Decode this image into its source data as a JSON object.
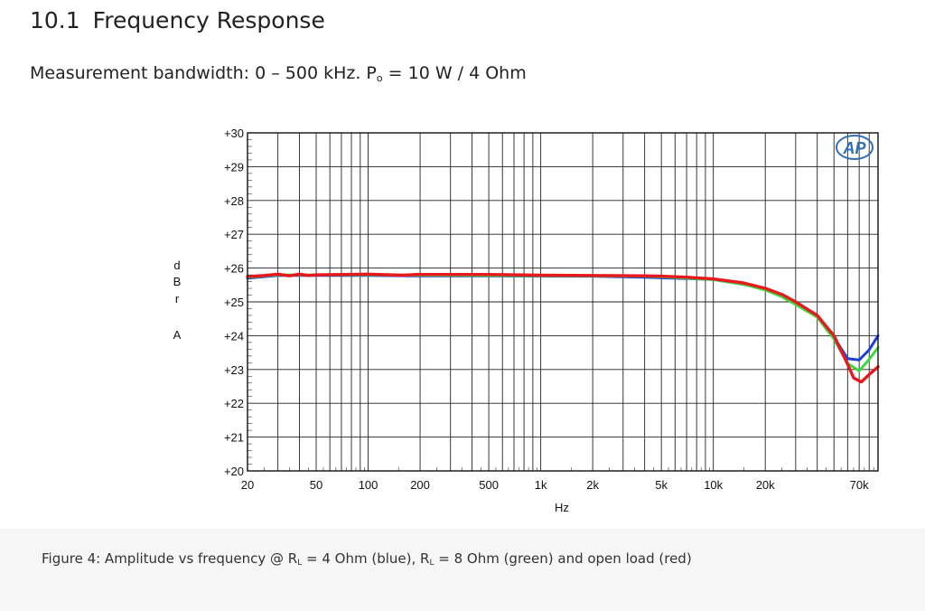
{
  "section": {
    "number": "10.1",
    "title": "Frequency Response"
  },
  "subtitle": {
    "before": "Measurement bandwidth: 0 – 500 kHz. P",
    "sub": "o",
    "after": " = 10 W / 4 Ohm"
  },
  "caption": {
    "p1": "Figure 4: Amplitude vs frequency @ R",
    "s1": "L",
    "p2": " = 4 Ohm (blue), R",
    "s2": "L",
    "p3": " = 8 Ohm (green) and open load (red)"
  },
  "logo_text": "AP",
  "chart_data": {
    "type": "line",
    "xscale": "log",
    "xlim": [
      20,
      90000
    ],
    "ylim": [
      20,
      30
    ],
    "xlabel": "Hz",
    "ylabel": [
      "d",
      "B",
      "r",
      "",
      "A"
    ],
    "x_ticks": [
      {
        "v": 20,
        "label": "20"
      },
      {
        "v": 50,
        "label": "50"
      },
      {
        "v": 100,
        "label": "100"
      },
      {
        "v": 200,
        "label": "200"
      },
      {
        "v": 500,
        "label": "500"
      },
      {
        "v": 1000,
        "label": "1k"
      },
      {
        "v": 2000,
        "label": "2k"
      },
      {
        "v": 5000,
        "label": "5k"
      },
      {
        "v": 10000,
        "label": "10k"
      },
      {
        "v": 20000,
        "label": "20k"
      },
      {
        "v": 70000,
        "label": "70k"
      }
    ],
    "y_ticks": [
      {
        "v": 30,
        "label": "+30"
      },
      {
        "v": 29,
        "label": "+29"
      },
      {
        "v": 28,
        "label": "+28"
      },
      {
        "v": 27,
        "label": "+27"
      },
      {
        "v": 26,
        "label": "+26"
      },
      {
        "v": 25,
        "label": "+25"
      },
      {
        "v": 24,
        "label": "+24"
      },
      {
        "v": 23,
        "label": "+23"
      },
      {
        "v": 22,
        "label": "+22"
      },
      {
        "v": 21,
        "label": "+21"
      },
      {
        "v": 20,
        "label": "+20"
      }
    ],
    "grid": true,
    "series": [
      {
        "color": "#1f3fd6",
        "x": [
          20,
          30,
          50,
          100,
          200,
          500,
          1000,
          2000,
          4000,
          5000,
          7000,
          10000,
          15000,
          20000,
          25000,
          30000,
          40000,
          50000,
          60000,
          70000,
          80000,
          90000
        ],
        "y": [
          25.7,
          25.78,
          25.78,
          25.78,
          25.77,
          25.77,
          25.76,
          25.76,
          25.73,
          25.71,
          25.69,
          25.66,
          25.52,
          25.38,
          25.18,
          24.95,
          24.58,
          23.95,
          23.32,
          23.28,
          23.58,
          24.0
        ]
      },
      {
        "color": "#3ed83e",
        "x": [
          20,
          30,
          50,
          100,
          200,
          500,
          1000,
          2000,
          4000,
          5000,
          7000,
          10000,
          15000,
          20000,
          25000,
          30000,
          40000,
          50000,
          60000,
          70000,
          80000,
          90000
        ],
        "y": [
          25.73,
          25.8,
          25.8,
          25.8,
          25.79,
          25.78,
          25.77,
          25.77,
          25.76,
          25.74,
          25.7,
          25.66,
          25.52,
          25.35,
          25.15,
          24.92,
          24.55,
          23.9,
          23.18,
          22.96,
          23.3,
          23.65
        ]
      },
      {
        "color": "#e8191e",
        "x": [
          20,
          25,
          30,
          35,
          40,
          45,
          50,
          100,
          160,
          190,
          200,
          500,
          1000,
          2000,
          4000,
          5000,
          7000,
          10000,
          15000,
          20000,
          25000,
          30000,
          40000,
          50000,
          60000,
          65000,
          72000,
          80000,
          90000
        ],
        "y": [
          25.75,
          25.78,
          25.82,
          25.77,
          25.82,
          25.78,
          25.8,
          25.82,
          25.79,
          25.81,
          25.81,
          25.81,
          25.79,
          25.78,
          25.77,
          25.76,
          25.73,
          25.68,
          25.56,
          25.4,
          25.22,
          25.0,
          24.6,
          24.0,
          23.15,
          22.75,
          22.63,
          22.85,
          23.08
        ]
      }
    ]
  }
}
